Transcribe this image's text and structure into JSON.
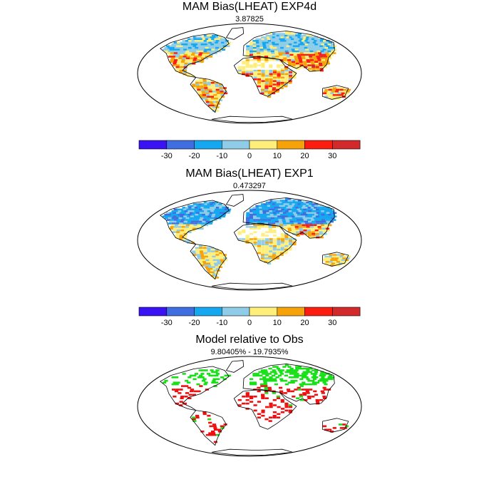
{
  "panels": [
    {
      "title": "MAM Bias(LHEAT) EXP4d",
      "subtitle": "3.87825",
      "pattern": "exp4d"
    },
    {
      "title": "MAM Bias(LHEAT) EXP1",
      "subtitle": "0.473297",
      "pattern": "exp1"
    },
    {
      "title": "Model relative to Obs",
      "subtitle": "9.80405% - 19.7935%",
      "pattern": "relative"
    }
  ],
  "colorbar": {
    "colors": [
      "#3a13f5",
      "#3f6ee0",
      "#15a8f0",
      "#8fcce8",
      "#ffef7a",
      "#f6a30a",
      "#fb1d10",
      "#d22a2a"
    ],
    "tick_labels": [
      "-30",
      "-20",
      "-10",
      "0",
      "10",
      "20",
      "30"
    ]
  },
  "relative_colors": {
    "better": "#18e018",
    "worse": "#ee1010"
  }
}
